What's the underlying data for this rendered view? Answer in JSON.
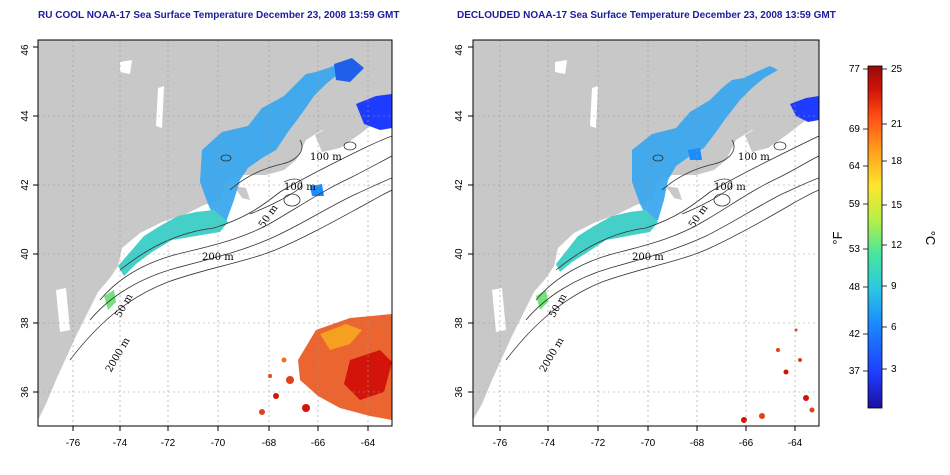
{
  "titles": {
    "left": "RU COOL NOAA-17 Sea Surface Temperature December 23, 2008 13:59 GMT",
    "right": "DECLOUDED NOAA-17 Sea Surface Temperature December 23, 2008 13:59 GMT"
  },
  "axes": {
    "lon_ticks": [
      "-76",
      "-74",
      "-72",
      "-70",
      "-68",
      "-66",
      "-64"
    ],
    "lat_ticks": [
      "36",
      "38",
      "40",
      "42",
      "44",
      "46"
    ]
  },
  "contour_labels": {
    "left": [
      "100 m",
      "100 m",
      "50 m",
      "200 m",
      "50 m",
      "2000 m"
    ],
    "right": [
      "100 m",
      "100 m",
      "50 m",
      "200 m",
      "50 m",
      "2000 m"
    ]
  },
  "colorbar": {
    "fahrenheit_ticks": [
      "77",
      "69",
      "64",
      "59",
      "53",
      "48",
      "42",
      "37"
    ],
    "celsius_ticks": [
      "25",
      "21",
      "18",
      "15",
      "12",
      "9",
      "6",
      "3"
    ],
    "fahrenheit_unit": "°F",
    "celsius_unit": "°C",
    "colors": [
      "#1b0fa0",
      "#1e3cff",
      "#1a8cff",
      "#2cc8e0",
      "#46e6a0",
      "#b6f046",
      "#ffe62c",
      "#ffa01e",
      "#ff5014",
      "#d2140a",
      "#960a0a"
    ]
  },
  "colors": {
    "land": "#c8c8c8",
    "ocean": "#ffffff",
    "grid": "#9a9a9a"
  }
}
